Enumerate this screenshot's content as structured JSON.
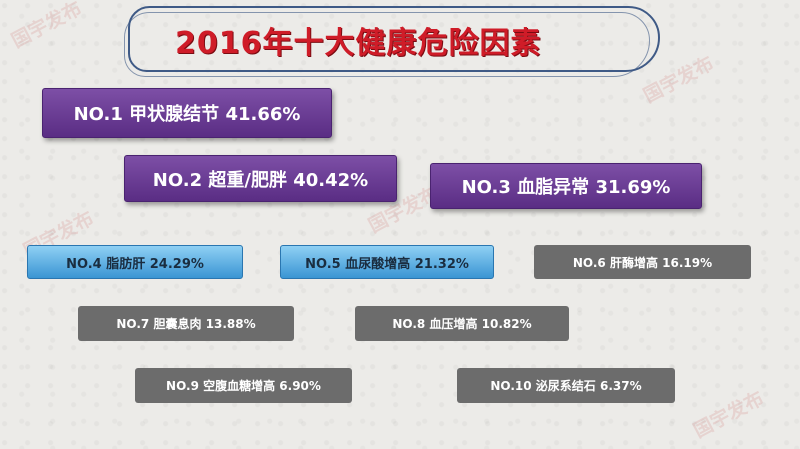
{
  "title": "2016年十大健康危险因素",
  "watermark": "国宇发布",
  "factors": [
    {
      "label": "NO.1 甲状腺结节   41.66%"
    },
    {
      "label": "NO.2 超重/肥胖   40.42%"
    },
    {
      "label": "NO.3 血脂异常   31.69%"
    },
    {
      "label": "NO.4 脂肪肝   24.29%"
    },
    {
      "label": "NO.5 血尿酸增高   21.32%"
    },
    {
      "label": "NO.6 肝酶增高   16.19%"
    },
    {
      "label": "NO.7 胆囊息肉   13.88%"
    },
    {
      "label": "NO.8 血压增高   10.82%"
    },
    {
      "label": "NO.9 空腹血糖增高   6.90%"
    },
    {
      "label": "NO.10 泌尿系结石   6.37%"
    }
  ],
  "colors": {
    "title": "#cf1c28",
    "tier1": "#6a3a96",
    "tier2": "#4ba6e0",
    "tier3": "#6c6c6c"
  }
}
